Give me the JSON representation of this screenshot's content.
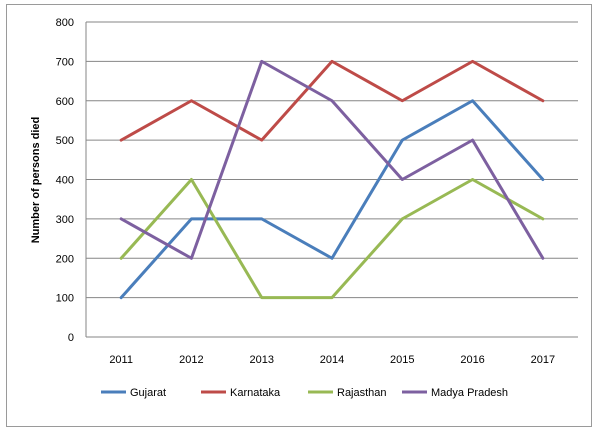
{
  "chart_data": {
    "type": "line",
    "title": "",
    "xlabel": "",
    "ylabel": "Number of persons died",
    "categories": [
      "2011",
      "2012",
      "2013",
      "2014",
      "2015",
      "2016",
      "2017"
    ],
    "ylim": [
      0,
      800
    ],
    "yticks": [
      "0",
      "100",
      "200",
      "300",
      "400",
      "500",
      "600",
      "700",
      "800"
    ],
    "grid": true,
    "legend_position": "bottom",
    "series": [
      {
        "name": "Gujarat",
        "color": "#4a7ebb",
        "values": [
          100,
          300,
          300,
          200,
          500,
          600,
          400
        ]
      },
      {
        "name": "Karnataka",
        "color": "#be4b48",
        "values": [
          500,
          600,
          500,
          700,
          600,
          700,
          600
        ]
      },
      {
        "name": "Rajasthan",
        "color": "#98b954",
        "values": [
          200,
          400,
          100,
          100,
          300,
          400,
          300
        ]
      },
      {
        "name": "Madya Pradesh",
        "color": "#7d60a0",
        "values": [
          300,
          200,
          700,
          600,
          400,
          500,
          200
        ]
      }
    ]
  }
}
